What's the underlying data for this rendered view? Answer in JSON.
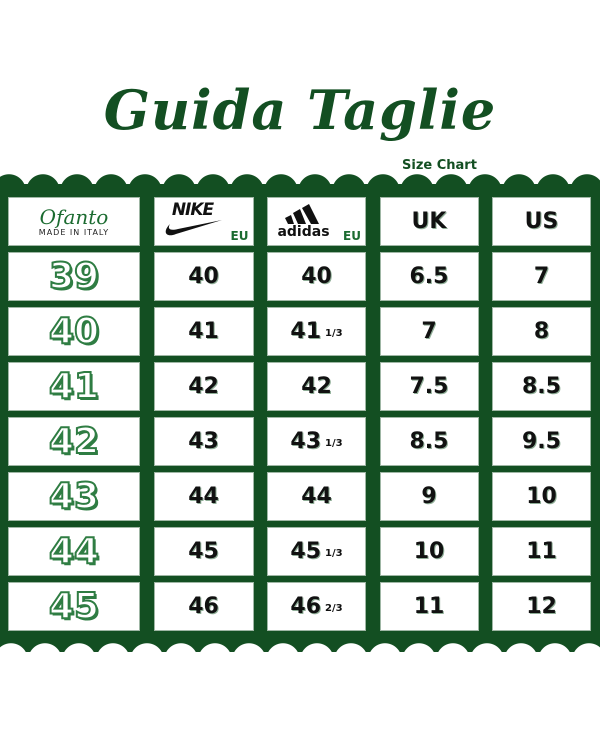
{
  "header": {
    "title": "Guida Taglie",
    "subtitle": "Size Chart"
  },
  "columns": {
    "brand": {
      "name": "Ofanto",
      "tagline": "MADE IN ITALY"
    },
    "nike": {
      "logo": "NIKE",
      "unit": "EU"
    },
    "adidas": {
      "logo": "adidas",
      "unit": "EU"
    },
    "uk": "UK",
    "us": "US"
  },
  "rows": [
    {
      "ofanto": "39",
      "nike": "40",
      "adidas": "40",
      "adidas_frac": "",
      "uk": "6.5",
      "us": "7"
    },
    {
      "ofanto": "40",
      "nike": "41",
      "adidas": "41",
      "adidas_frac": "1/3",
      "uk": "7",
      "us": "8"
    },
    {
      "ofanto": "41",
      "nike": "42",
      "adidas": "42",
      "adidas_frac": "",
      "uk": "7.5",
      "us": "8.5"
    },
    {
      "ofanto": "42",
      "nike": "43",
      "adidas": "43",
      "adidas_frac": "1/3",
      "uk": "8.5",
      "us": "9.5"
    },
    {
      "ofanto": "43",
      "nike": "44",
      "adidas": "44",
      "adidas_frac": "",
      "uk": "9",
      "us": "10"
    },
    {
      "ofanto": "44",
      "nike": "45",
      "adidas": "45",
      "adidas_frac": "1/3",
      "uk": "10",
      "us": "11"
    },
    {
      "ofanto": "45",
      "nike": "46",
      "adidas": "46",
      "adidas_frac": "2/3",
      "uk": "11",
      "us": "12"
    }
  ],
  "colors": {
    "green": "#134f22",
    "accent": "#2f7d43"
  }
}
